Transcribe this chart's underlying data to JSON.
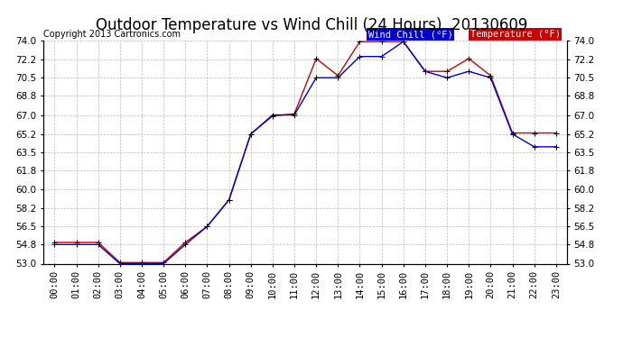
{
  "title": "Outdoor Temperature vs Wind Chill (24 Hours)  20130609",
  "copyright": "Copyright 2013 Cartronics.com",
  "legend_wind_chill": "Wind Chill (°F)",
  "legend_temperature": "Temperature (°F)",
  "hours": [
    "00:00",
    "01:00",
    "02:00",
    "03:00",
    "04:00",
    "05:00",
    "06:00",
    "07:00",
    "08:00",
    "09:00",
    "10:00",
    "11:00",
    "12:00",
    "13:00",
    "14:00",
    "15:00",
    "16:00",
    "17:00",
    "18:00",
    "19:00",
    "20:00",
    "21:00",
    "22:00",
    "23:00"
  ],
  "temperature": [
    55.0,
    55.0,
    55.0,
    53.1,
    53.1,
    53.1,
    55.0,
    56.5,
    59.0,
    65.2,
    66.9,
    67.1,
    72.3,
    70.7,
    73.9,
    73.9,
    73.9,
    71.1,
    71.1,
    72.3,
    70.7,
    65.3,
    65.3,
    65.3
  ],
  "wind_chill": [
    54.8,
    54.8,
    54.8,
    53.0,
    53.0,
    53.0,
    54.8,
    56.5,
    59.0,
    65.2,
    67.0,
    67.0,
    70.5,
    70.5,
    72.5,
    72.5,
    73.9,
    71.1,
    70.5,
    71.1,
    70.5,
    65.2,
    64.0,
    64.0
  ],
  "ylim_min": 53.0,
  "ylim_max": 74.0,
  "yticks": [
    53.0,
    54.8,
    56.5,
    58.2,
    60.0,
    61.8,
    63.5,
    65.2,
    67.0,
    68.8,
    70.5,
    72.2,
    74.0
  ],
  "bg_color": "#ffffff",
  "plot_bg_color": "#ffffff",
  "grid_color": "#bbbbbb",
  "temp_color": "#cc0000",
  "wind_chill_color": "#0000cc",
  "title_fontsize": 12,
  "tick_fontsize": 7.5,
  "legend_fontsize": 7.5,
  "copyright_fontsize": 7
}
